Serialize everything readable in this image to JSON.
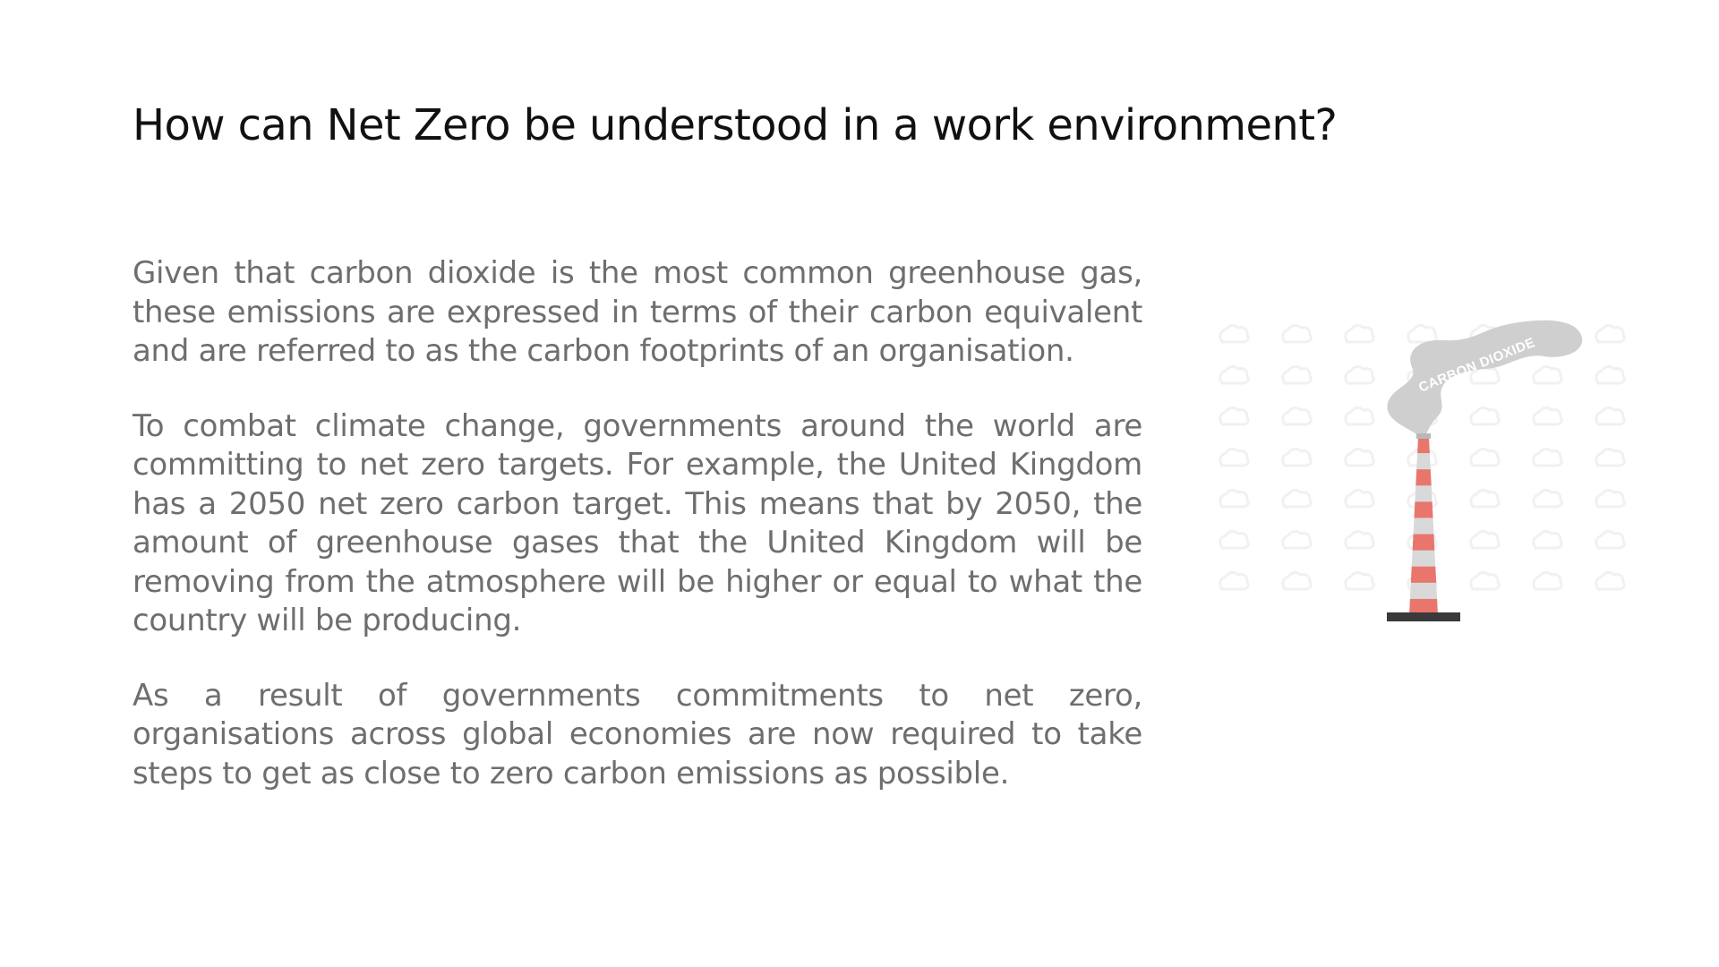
{
  "slide": {
    "title": "How can Net Zero be understood in a work environment?",
    "paragraphs": [
      "Given that carbon dioxide is the most common greenhouse gas, these emissions are expressed in terms of their carbon equivalent and are referred to as the carbon footprints of an organisation.",
      "To combat climate change, governments around the world are committing to net zero targets. For example, the United Kingdom has a 2050 net zero carbon target. This means that by 2050, the amount of greenhouse gases that the United Kingdom will be removing from the atmosphere will be higher or equal to what the country will be producing.",
      "As a result of governments commitments to net zero, organisations across global economies are now required to take steps to get as close to zero carbon emissions as possible."
    ]
  },
  "illustration": {
    "smoke_label": "CARBON DIOXIDE",
    "icon": "chimney-icon",
    "colors": {
      "stripe_red": "#e8766d",
      "stripe_light": "#d9d9d9",
      "smoke": "#cfcfcf",
      "base": "#3a3a3a",
      "pattern": "#f1f1f1"
    }
  }
}
